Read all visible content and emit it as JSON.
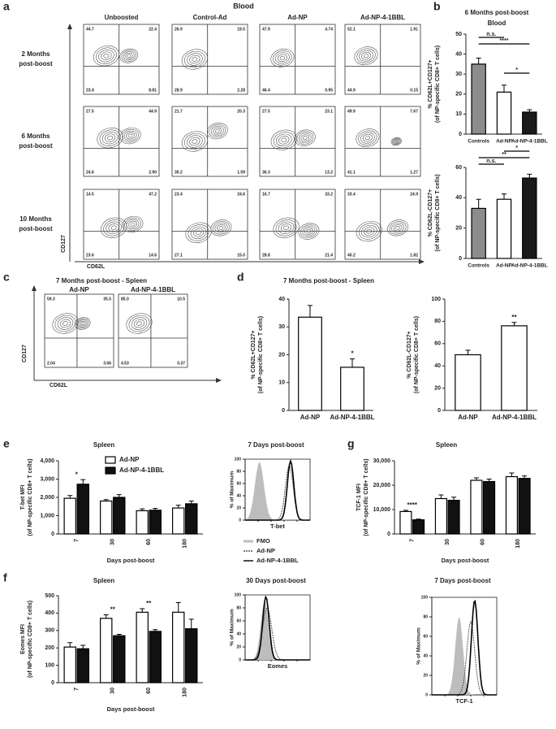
{
  "panel_letters": [
    "a",
    "b",
    "c",
    "d",
    "e",
    "f",
    "g"
  ],
  "flow_cytometry": [
    {
      "title": "Blood",
      "x_label": "CD62L",
      "y_label": "CD127",
      "columns": [
        "Unboosted",
        "Control-Ad",
        "Ad-NP",
        "Ad-NP-4-1BBL"
      ],
      "rows": [
        {
          "label": [
            "2 Months",
            "post-boost"
          ],
          "plots": [
            [
              "44.7",
              "22.4",
              "23.4",
              "8.81"
            ],
            [
              "26.9",
              "19.5",
              "28.9",
              "2.28"
            ],
            [
              "47.9",
              "4.74",
              "46.4",
              "0.95"
            ],
            [
              "52.1",
              "1.91",
              "44.9",
              "0.15"
            ]
          ]
        },
        {
          "label": [
            "6 Months",
            "post-boost"
          ],
          "plots": [
            [
              "27.5",
              "44.9",
              "24.6",
              "2.90"
            ],
            [
              "21.7",
              "20.3",
              "30.2",
              "1.59"
            ],
            [
              "27.5",
              "23.1",
              "36.3",
              "13.2"
            ],
            [
              "49.9",
              "7.67",
              "41.1",
              "1.27"
            ]
          ]
        },
        {
          "label": [
            "10 Months",
            "post-boost"
          ],
          "plots": [
            [
              "14.5",
              "47.2",
              "23.6",
              "14.6"
            ],
            [
              "23.4",
              "24.6",
              "27.1",
              "15.0"
            ],
            [
              "16.7",
              "33.2",
              "28.8",
              "21.4"
            ],
            [
              "33.4",
              "24.9",
              "40.2",
              "1.82"
            ]
          ]
        }
      ]
    },
    {
      "title": "7 Months post-boost - Spleen",
      "x_label": "CD62L",
      "y_label": "CD127",
      "columns": [
        "Ad-NP",
        "Ad-NP-4-1BBL"
      ],
      "rows": [
        {
          "plots": [
            [
              "59.3",
              "35.5",
              "2.04",
              "3.06"
            ],
            [
              "85.0",
              "10.5",
              "4.53",
              "0.37"
            ]
          ]
        }
      ]
    }
  ],
  "chart_data": [
    {
      "type": "bar",
      "title": "6 Months post-boost",
      "subtitle": "Blood",
      "ylabel": [
        "% CD62L+CD127+",
        "(of NP-specific CD8+ T cells)"
      ],
      "categories": [
        "Controls",
        "Ad-NP",
        "Ad-NP-4-1BBL"
      ],
      "values": [
        35,
        21,
        11
      ],
      "errors": [
        3,
        3.5,
        1.2
      ],
      "colors": [
        "#8c8c8c",
        "#ffffff",
        "#1a1a1a"
      ],
      "ylim": [
        0,
        50
      ],
      "yticks": [
        0,
        10,
        20,
        30,
        40,
        50
      ],
      "significance": [
        {
          "between": [
            "Controls",
            "Ad-NP"
          ],
          "label": "n.s."
        },
        {
          "between": [
            "Controls",
            "Ad-NP-4-1BBL"
          ],
          "label": "****"
        },
        {
          "between": [
            "Ad-NP",
            "Ad-NP-4-1BBL"
          ],
          "label": "*"
        }
      ]
    },
    {
      "type": "bar",
      "ylabel": [
        "% CD62L-CD127+",
        "(of NP-specific CD8+ T cells)"
      ],
      "categories": [
        "Controls",
        "Ad-NP",
        "Ad-NP-4-1BBL"
      ],
      "values": [
        33,
        39,
        53
      ],
      "errors": [
        6,
        3.5,
        2.5
      ],
      "colors": [
        "#8c8c8c",
        "#ffffff",
        "#1a1a1a"
      ],
      "ylim": [
        0,
        60
      ],
      "yticks": [
        0,
        20,
        40,
        60
      ],
      "significance": [
        {
          "between": [
            "Ad-NP",
            "Ad-NP-4-1BBL"
          ],
          "label": "*"
        },
        {
          "between": [
            "Controls",
            "Ad-NP-4-1BBL"
          ],
          "label": "**"
        },
        {
          "between": [
            "Controls",
            "Ad-NP"
          ],
          "label": "n.s."
        }
      ]
    },
    {
      "type": "bar",
      "title": "7 Months post-boost - Spleen",
      "ylabel": [
        "% CD62L+CD127+",
        "(of NP-specific CD8+ T cells)"
      ],
      "categories": [
        "Ad-NP",
        "Ad-NP-4-1BBL"
      ],
      "values": [
        33.5,
        15.5
      ],
      "errors": [
        4.2,
        3
      ],
      "colors": [
        "#ffffff",
        "#ffffff"
      ],
      "ylim": [
        0,
        40
      ],
      "yticks": [
        0,
        10,
        20,
        30,
        40
      ],
      "annotations": [
        {
          "category": "Ad-NP-4-1BBL",
          "label": "*"
        }
      ]
    },
    {
      "type": "bar",
      "ylabel": [
        "% CD62L-CD127+",
        "(of NP-specific CD8+ T cells)"
      ],
      "categories": [
        "Ad-NP",
        "Ad-NP-4-1BBL"
      ],
      "values": [
        50,
        76
      ],
      "errors": [
        4,
        3
      ],
      "colors": [
        "#ffffff",
        "#ffffff"
      ],
      "ylim": [
        0,
        100
      ],
      "yticks": [
        0,
        20,
        40,
        60,
        80,
        100
      ],
      "annotations": [
        {
          "category": "Ad-NP-4-1BBL",
          "label": "**"
        }
      ]
    },
    {
      "type": "grouped-bar",
      "title": "Spleen",
      "ylabel": [
        "T-bet MFI",
        "(of NP-specific CD8+ T cells)"
      ],
      "xlabel": "Days post-boost",
      "categories": [
        "7",
        "30",
        "60",
        "180"
      ],
      "series": [
        {
          "name": "Ad-NP",
          "color": "#ffffff",
          "values": [
            1950,
            1800,
            1270,
            1420
          ],
          "errors": [
            150,
            80,
            100,
            150
          ]
        },
        {
          "name": "Ad-NP-4-1BBL",
          "color": "#111111",
          "values": [
            2720,
            2000,
            1300,
            1650
          ],
          "errors": [
            250,
            150,
            100,
            150
          ]
        }
      ],
      "ylim": [
        0,
        4000
      ],
      "yticks": [
        0,
        {
          "value": 1000,
          "label": "1,000"
        },
        {
          "value": 2000,
          "label": "2,000"
        },
        {
          "value": 3000,
          "label": "3,000"
        },
        {
          "value": 4000,
          "label": "4,000"
        }
      ],
      "annotations": [
        {
          "category": "7",
          "label": "*"
        }
      ]
    },
    {
      "type": "histogram-overlay",
      "title": "7 Days post-boost",
      "ylabel": "% of Maximum",
      "xlabel": "T-bet",
      "ylim": [
        0,
        100
      ],
      "yticks": [
        0,
        20,
        40,
        60,
        80,
        100
      ],
      "series": [
        {
          "name": "FMO",
          "color": "#bdbdbd"
        },
        {
          "name": "Ad-NP",
          "color": "#555555"
        },
        {
          "name": "Ad-NP-4-1BBL",
          "color": "#000000"
        }
      ]
    },
    {
      "type": "grouped-bar",
      "title": "Spleen",
      "ylabel": [
        "Eomes MFI",
        "(of NP-specific CD8+ T cells)"
      ],
      "xlabel": "Days post-boost",
      "categories": [
        "7",
        "30",
        "60",
        "180"
      ],
      "series": [
        {
          "color": "#ffffff",
          "values": [
            205,
            370,
            405,
            405
          ],
          "errors": [
            25,
            20,
            20,
            55
          ]
        },
        {
          "color": "#111111",
          "values": [
            195,
            270,
            295,
            310
          ],
          "errors": [
            20,
            8,
            10,
            55
          ]
        }
      ],
      "ylim": [
        0,
        500
      ],
      "yticks": [
        0,
        100,
        200,
        300,
        400,
        500
      ],
      "annotations": [
        {
          "category": "30",
          "label": "**"
        },
        {
          "category": "60",
          "label": "**"
        }
      ]
    },
    {
      "type": "histogram-overlay",
      "title": "30 Days post-boost",
      "ylabel": "% of Maximum",
      "xlabel": "Eomes",
      "ylim": [
        0,
        100
      ],
      "yticks": [
        0,
        20,
        40,
        60,
        80,
        100
      ],
      "series": [
        {
          "color": "#bdbdbd"
        },
        {
          "color": "#555555"
        },
        {
          "color": "#000000"
        }
      ]
    },
    {
      "type": "grouped-bar",
      "title": "Spleen",
      "ylabel": [
        "TCF-1 MFI",
        "(of NP-specific CD8+ T cells)"
      ],
      "xlabel": "Days post-boost",
      "categories": [
        "7",
        "30",
        "60",
        "180"
      ],
      "series": [
        {
          "color": "#ffffff",
          "values": [
            9200,
            14500,
            22000,
            23500
          ],
          "errors": [
            500,
            1500,
            1000,
            1500
          ]
        },
        {
          "color": "#111111",
          "values": [
            5800,
            13800,
            21500,
            22800
          ],
          "errors": [
            300,
            1300,
            1000,
            1000
          ]
        }
      ],
      "ylim": [
        0,
        30000
      ],
      "yticks": [
        0,
        {
          "value": 10000,
          "label": "10,000"
        },
        {
          "value": 20000,
          "label": "20,000"
        },
        {
          "value": 30000,
          "label": "30,000"
        }
      ],
      "annotations": [
        {
          "category": "7",
          "label": "****"
        }
      ]
    },
    {
      "type": "histogram-overlay",
      "title": "7 Days post-boost",
      "ylabel": "% of Maximum",
      "xlabel": "TCF-1",
      "ylim": [
        0,
        100
      ],
      "yticks": [
        0,
        20,
        40,
        60,
        80,
        100
      ],
      "series": [
        {
          "color": "#bdbdbd"
        },
        {
          "color": "#555555"
        },
        {
          "color": "#000000"
        }
      ]
    }
  ]
}
